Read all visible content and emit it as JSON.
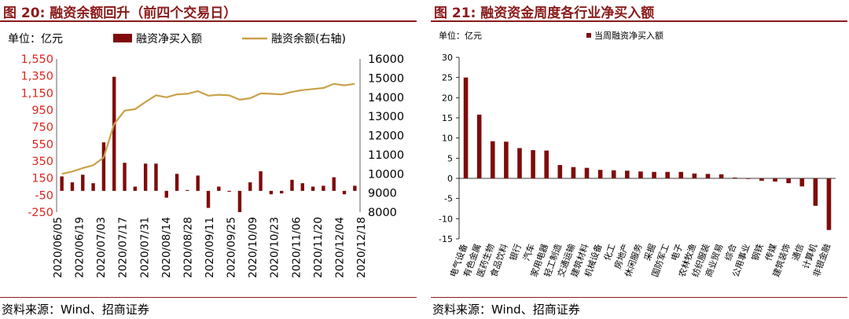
{
  "left": {
    "title_num": "图 20:",
    "title_text": "融资余额回升（前四个交易日）",
    "source": "资料来源：Wind、招商证券",
    "colors": {
      "title": "#8b1a1a",
      "bar": "#7f0b0b",
      "line": "#c8a24a",
      "y1": "#e0261e"
    },
    "chart_data": {
      "type": "bar+line",
      "unit_label": "单位：亿元",
      "legend": {
        "position": "top"
      },
      "series": [
        {
          "name": "融资净买入额",
          "type": "bar",
          "axis": "left",
          "values": [
            170,
            100,
            190,
            90,
            570,
            1340,
            330,
            50,
            320,
            320,
            -80,
            200,
            10,
            180,
            -200,
            50,
            -10,
            -250,
            100,
            230,
            -40,
            -30,
            130,
            90,
            50,
            60,
            160,
            -40,
            60
          ]
        },
        {
          "name": "融资余额(右轴)",
          "type": "line",
          "axis": "right",
          "values": [
            10000,
            10120,
            10300,
            10450,
            10850,
            12600,
            13300,
            13380,
            13750,
            14100,
            14000,
            14150,
            14180,
            14320,
            14080,
            14130,
            14100,
            13870,
            13950,
            14200,
            14180,
            14150,
            14280,
            14370,
            14430,
            14480,
            14700,
            14620,
            14700
          ]
        }
      ],
      "xticks": [
        "2020/06/05",
        "2020/06/19",
        "2020/07/03",
        "2020/07/17",
        "2020/07/31",
        "2020/08/14",
        "2020/08/28",
        "2020/09/11",
        "2020/09/25",
        "2020/10/09",
        "2020/10/23",
        "2020/11/06",
        "2020/11/20",
        "2020/12/04",
        "2020/12/18"
      ],
      "y_left": {
        "ticks": [
          "1,550",
          "1,350",
          "1,150",
          "950",
          "750",
          "550",
          "350",
          "150",
          "-50",
          "-250"
        ],
        "min": -250,
        "max": 1550
      },
      "y_right": {
        "ticks": [
          "16000",
          "15000",
          "14000",
          "13000",
          "12000",
          "11000",
          "10000",
          "9000",
          "8000"
        ],
        "min": 8000,
        "max": 16000
      }
    }
  },
  "right": {
    "title_num": "图 21:",
    "title_text": "融资资金周度各行业净买入额",
    "source": "资料来源：Wind、招商证券",
    "colors": {
      "title": "#8b1a1a",
      "bar": "#7f0b0b"
    },
    "chart_data": {
      "type": "bar",
      "unit_label": "单位：亿元",
      "legend": {
        "position": "top"
      },
      "series": [
        {
          "name": "当周融资净买入额",
          "values": [
            25,
            15.8,
            9.2,
            9.1,
            7.5,
            7,
            6.9,
            3.3,
            2.8,
            2.6,
            2.1,
            2.0,
            1.9,
            1.7,
            1.6,
            1.6,
            1.6,
            1.2,
            1.1,
            1.0,
            0.2,
            0.0,
            -0.6,
            -0.8,
            -1.2,
            -2.0,
            -6.8,
            -12.8
          ]
        }
      ],
      "categories": [
        "电气设备",
        "有色金属",
        "医药生物",
        "食品饮料",
        "银行",
        "汽车",
        "家用电器",
        "轻工制造",
        "交通运输",
        "建筑材料",
        "机械设备",
        "化工",
        "房地产",
        "休闲服务",
        "采掘",
        "国防军工",
        "电子",
        "农林牧渔",
        "纺织服装",
        "商业贸易",
        "综合",
        "公用事业",
        "钢铁",
        "传媒",
        "建筑装饰",
        "通信",
        "计算机",
        "非银金融"
      ],
      "y": {
        "ticks": [
          "30",
          "25",
          "20",
          "15",
          "10",
          "5",
          "0",
          "-5",
          "-10",
          "-15"
        ],
        "min": -15,
        "max": 30
      }
    }
  }
}
